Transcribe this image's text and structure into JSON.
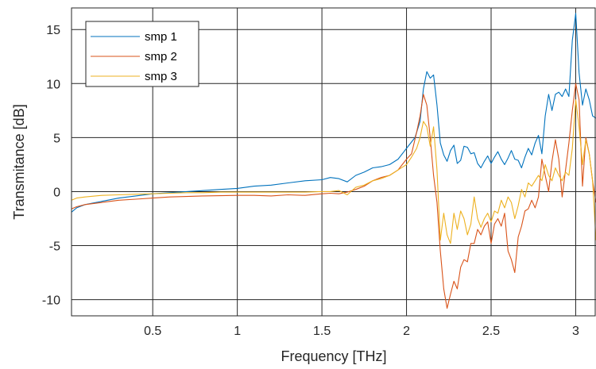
{
  "chart_data": {
    "type": "line",
    "title": "",
    "xlabel": "Frequency [THz]",
    "ylabel": "Transmitance [dB]",
    "xlim": [
      0.02,
      3.12
    ],
    "ylim": [
      -11.5,
      17
    ],
    "xticks": [
      0.5,
      1,
      1.5,
      2,
      2.5,
      3
    ],
    "xtick_labels": [
      "0.5",
      "1",
      "1.5",
      "2",
      "2.5",
      "3"
    ],
    "yticks": [
      -10,
      -5,
      0,
      5,
      10,
      15
    ],
    "ytick_labels": [
      "-10",
      "-5",
      "0",
      "5",
      "10",
      "15"
    ],
    "grid": true,
    "legend_position": "top-left",
    "series": [
      {
        "name": "smp 1",
        "color": "#0072BD",
        "points": [
          [
            0.02,
            -1.9
          ],
          [
            0.05,
            -1.5
          ],
          [
            0.1,
            -1.2
          ],
          [
            0.2,
            -0.9
          ],
          [
            0.3,
            -0.6
          ],
          [
            0.4,
            -0.4
          ],
          [
            0.5,
            -0.2
          ],
          [
            0.6,
            -0.1
          ],
          [
            0.7,
            0.0
          ],
          [
            0.8,
            0.1
          ],
          [
            0.9,
            0.2
          ],
          [
            1.0,
            0.3
          ],
          [
            1.1,
            0.5
          ],
          [
            1.2,
            0.6
          ],
          [
            1.3,
            0.8
          ],
          [
            1.4,
            1.0
          ],
          [
            1.5,
            1.1
          ],
          [
            1.55,
            1.3
          ],
          [
            1.6,
            1.2
          ],
          [
            1.65,
            0.9
          ],
          [
            1.7,
            1.5
          ],
          [
            1.75,
            1.8
          ],
          [
            1.8,
            2.2
          ],
          [
            1.85,
            2.3
          ],
          [
            1.9,
            2.5
          ],
          [
            1.95,
            3.0
          ],
          [
            2.0,
            4.0
          ],
          [
            2.05,
            5.0
          ],
          [
            2.08,
            6.5
          ],
          [
            2.1,
            9.5
          ],
          [
            2.12,
            11.1
          ],
          [
            2.14,
            10.5
          ],
          [
            2.16,
            10.8
          ],
          [
            2.18,
            8.0
          ],
          [
            2.2,
            4.5
          ],
          [
            2.22,
            3.4
          ],
          [
            2.24,
            2.8
          ],
          [
            2.26,
            3.8
          ],
          [
            2.28,
            4.3
          ],
          [
            2.3,
            2.6
          ],
          [
            2.32,
            2.9
          ],
          [
            2.34,
            4.2
          ],
          [
            2.36,
            4.1
          ],
          [
            2.38,
            3.5
          ],
          [
            2.4,
            3.6
          ],
          [
            2.42,
            2.6
          ],
          [
            2.44,
            2.2
          ],
          [
            2.46,
            2.8
          ],
          [
            2.48,
            3.3
          ],
          [
            2.5,
            2.6
          ],
          [
            2.52,
            3.2
          ],
          [
            2.54,
            3.7
          ],
          [
            2.56,
            3.0
          ],
          [
            2.58,
            2.5
          ],
          [
            2.6,
            3.1
          ],
          [
            2.62,
            3.8
          ],
          [
            2.64,
            3.0
          ],
          [
            2.66,
            2.9
          ],
          [
            2.68,
            2.2
          ],
          [
            2.7,
            3.2
          ],
          [
            2.72,
            4.0
          ],
          [
            2.74,
            3.4
          ],
          [
            2.76,
            4.5
          ],
          [
            2.78,
            5.2
          ],
          [
            2.8,
            3.5
          ],
          [
            2.82,
            7.0
          ],
          [
            2.84,
            9.0
          ],
          [
            2.86,
            7.5
          ],
          [
            2.88,
            9.0
          ],
          [
            2.9,
            9.2
          ],
          [
            2.92,
            8.8
          ],
          [
            2.94,
            9.5
          ],
          [
            2.96,
            8.8
          ],
          [
            2.98,
            14.0
          ],
          [
            3.0,
            16.5
          ],
          [
            3.02,
            11.0
          ],
          [
            3.04,
            8.0
          ],
          [
            3.06,
            9.5
          ],
          [
            3.08,
            8.5
          ],
          [
            3.1,
            7.0
          ],
          [
            3.12,
            6.8
          ]
        ]
      },
      {
        "name": "smp 2",
        "color": "#D95319",
        "points": [
          [
            0.02,
            -1.6
          ],
          [
            0.05,
            -1.4
          ],
          [
            0.1,
            -1.2
          ],
          [
            0.2,
            -1.0
          ],
          [
            0.3,
            -0.8
          ],
          [
            0.4,
            -0.7
          ],
          [
            0.5,
            -0.6
          ],
          [
            0.6,
            -0.5
          ],
          [
            0.7,
            -0.45
          ],
          [
            0.8,
            -0.4
          ],
          [
            0.9,
            -0.38
          ],
          [
            1.0,
            -0.35
          ],
          [
            1.1,
            -0.35
          ],
          [
            1.2,
            -0.4
          ],
          [
            1.3,
            -0.3
          ],
          [
            1.4,
            -0.35
          ],
          [
            1.5,
            -0.2
          ],
          [
            1.55,
            -0.15
          ],
          [
            1.6,
            -0.2
          ],
          [
            1.65,
            -0.05
          ],
          [
            1.7,
            0.2
          ],
          [
            1.75,
            0.5
          ],
          [
            1.8,
            1.0
          ],
          [
            1.85,
            1.3
          ],
          [
            1.9,
            1.5
          ],
          [
            1.95,
            2.0
          ],
          [
            2.0,
            3.0
          ],
          [
            2.03,
            3.5
          ],
          [
            2.06,
            5.5
          ],
          [
            2.08,
            7.0
          ],
          [
            2.1,
            9.0
          ],
          [
            2.12,
            8.0
          ],
          [
            2.14,
            5.0
          ],
          [
            2.16,
            1.5
          ],
          [
            2.18,
            -1.0
          ],
          [
            2.2,
            -5.5
          ],
          [
            2.22,
            -9.0
          ],
          [
            2.24,
            -10.8
          ],
          [
            2.26,
            -9.5
          ],
          [
            2.28,
            -8.3
          ],
          [
            2.3,
            -9.0
          ],
          [
            2.32,
            -7.0
          ],
          [
            2.34,
            -6.3
          ],
          [
            2.36,
            -6.5
          ],
          [
            2.38,
            -4.8
          ],
          [
            2.4,
            -4.8
          ],
          [
            2.42,
            -3.5
          ],
          [
            2.44,
            -4.0
          ],
          [
            2.46,
            -3.2
          ],
          [
            2.48,
            -2.8
          ],
          [
            2.5,
            -4.8
          ],
          [
            2.52,
            -3.0
          ],
          [
            2.54,
            -2.5
          ],
          [
            2.56,
            -3.2
          ],
          [
            2.58,
            -2.0
          ],
          [
            2.6,
            -5.5
          ],
          [
            2.62,
            -6.3
          ],
          [
            2.64,
            -7.5
          ],
          [
            2.66,
            -4.2
          ],
          [
            2.68,
            -3.2
          ],
          [
            2.7,
            -1.8
          ],
          [
            2.72,
            -1.6
          ],
          [
            2.74,
            -0.8
          ],
          [
            2.76,
            -1.5
          ],
          [
            2.78,
            -0.5
          ],
          [
            2.8,
            3.0
          ],
          [
            2.82,
            1.5
          ],
          [
            2.84,
            0.0
          ],
          [
            2.86,
            2.8
          ],
          [
            2.88,
            4.8
          ],
          [
            2.9,
            3.0
          ],
          [
            2.92,
            -0.5
          ],
          [
            2.94,
            2.0
          ],
          [
            2.96,
            4.5
          ],
          [
            2.98,
            7.5
          ],
          [
            3.0,
            10.0
          ],
          [
            3.02,
            8.5
          ],
          [
            3.04,
            0.5
          ],
          [
            3.06,
            5.0
          ],
          [
            3.08,
            3.5
          ],
          [
            3.1,
            1.0
          ],
          [
            3.12,
            -1.0
          ]
        ]
      },
      {
        "name": "smp 3",
        "color": "#EDB120",
        "points": [
          [
            0.02,
            -0.8
          ],
          [
            0.05,
            -0.6
          ],
          [
            0.1,
            -0.5
          ],
          [
            0.2,
            -0.35
          ],
          [
            0.3,
            -0.3
          ],
          [
            0.4,
            -0.25
          ],
          [
            0.5,
            -0.2
          ],
          [
            0.6,
            -0.15
          ],
          [
            0.7,
            -0.1
          ],
          [
            0.8,
            -0.1
          ],
          [
            0.9,
            -0.05
          ],
          [
            1.0,
            -0.05
          ],
          [
            1.1,
            -0.05
          ],
          [
            1.2,
            -0.05
          ],
          [
            1.3,
            -0.05
          ],
          [
            1.4,
            -0.05
          ],
          [
            1.5,
            0.0
          ],
          [
            1.55,
            0.0
          ],
          [
            1.6,
            0.1
          ],
          [
            1.65,
            -0.3
          ],
          [
            1.7,
            0.4
          ],
          [
            1.75,
            0.6
          ],
          [
            1.8,
            1.0
          ],
          [
            1.85,
            1.2
          ],
          [
            1.9,
            1.5
          ],
          [
            1.95,
            2.0
          ],
          [
            2.0,
            2.5
          ],
          [
            2.03,
            3.2
          ],
          [
            2.06,
            4.0
          ],
          [
            2.08,
            5.0
          ],
          [
            2.1,
            6.5
          ],
          [
            2.12,
            6.0
          ],
          [
            2.14,
            4.2
          ],
          [
            2.16,
            6.0
          ],
          [
            2.18,
            2.0
          ],
          [
            2.2,
            -4.5
          ],
          [
            2.22,
            -2.0
          ],
          [
            2.24,
            -4.0
          ],
          [
            2.26,
            -4.8
          ],
          [
            2.28,
            -2.0
          ],
          [
            2.3,
            -3.5
          ],
          [
            2.32,
            -1.8
          ],
          [
            2.34,
            -2.5
          ],
          [
            2.36,
            -4.0
          ],
          [
            2.38,
            -3.0
          ],
          [
            2.4,
            -0.5
          ],
          [
            2.42,
            -2.5
          ],
          [
            2.44,
            -3.3
          ],
          [
            2.46,
            -2.5
          ],
          [
            2.48,
            -2.0
          ],
          [
            2.5,
            -2.8
          ],
          [
            2.52,
            -1.8
          ],
          [
            2.54,
            -2.0
          ],
          [
            2.56,
            -0.8
          ],
          [
            2.58,
            -1.5
          ],
          [
            2.6,
            -0.5
          ],
          [
            2.62,
            -1.0
          ],
          [
            2.64,
            -2.5
          ],
          [
            2.66,
            -1.3
          ],
          [
            2.68,
            0.2
          ],
          [
            2.7,
            -0.5
          ],
          [
            2.72,
            0.8
          ],
          [
            2.74,
            0.5
          ],
          [
            2.76,
            1.0
          ],
          [
            2.78,
            1.5
          ],
          [
            2.8,
            1.0
          ],
          [
            2.82,
            2.5
          ],
          [
            2.84,
            1.5
          ],
          [
            2.86,
            1.0
          ],
          [
            2.88,
            2.2
          ],
          [
            2.9,
            1.5
          ],
          [
            2.92,
            1.0
          ],
          [
            2.94,
            1.8
          ],
          [
            2.96,
            1.5
          ],
          [
            2.98,
            4.0
          ],
          [
            3.0,
            8.5
          ],
          [
            3.02,
            6.0
          ],
          [
            3.04,
            2.5
          ],
          [
            3.06,
            4.8
          ],
          [
            3.08,
            3.5
          ],
          [
            3.1,
            1.0
          ],
          [
            3.12,
            -4.5
          ]
        ]
      }
    ]
  }
}
